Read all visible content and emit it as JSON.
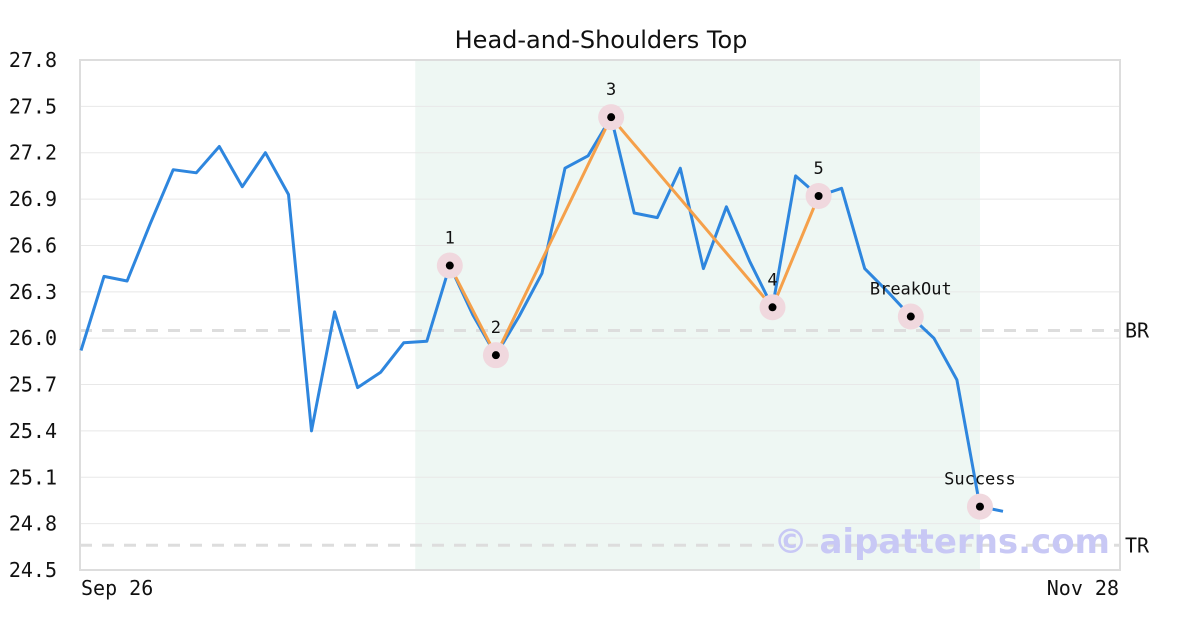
{
  "chart_data": {
    "type": "line",
    "title": "Head-and-Shoulders Top",
    "xlabel": "",
    "ylabel": "",
    "ylim": [
      24.5,
      27.8
    ],
    "yticks": [
      "24.5",
      "24.8",
      "25.1",
      "25.4",
      "25.7",
      "26.0",
      "26.3",
      "26.6",
      "26.9",
      "27.2",
      "27.5",
      "27.8"
    ],
    "x_tick_labels": {
      "first": "Sep 26",
      "last": "Nov 28"
    },
    "x_count": 46,
    "grid": true,
    "pattern_region": {
      "start_index": 14,
      "end_index": 39
    },
    "series": [
      {
        "values": [
          25.92,
          26.4,
          26.37,
          26.74,
          27.09,
          27.07,
          27.24,
          26.98,
          27.2,
          26.93,
          25.4,
          26.17,
          25.68,
          25.78,
          25.97,
          25.98,
          26.47,
          26.15,
          25.89,
          26.14,
          26.42,
          27.1,
          27.18,
          27.43,
          26.81,
          26.78,
          27.1,
          26.45,
          26.85,
          26.5,
          26.2,
          27.05,
          26.92,
          26.97,
          26.45,
          26.3,
          26.14,
          26.0,
          25.73,
          24.91,
          24.88
        ]
      }
    ],
    "pattern_points": [
      {
        "label": "1",
        "index": 16,
        "value": 26.47
      },
      {
        "label": "2",
        "index": 18,
        "value": 25.89
      },
      {
        "label": "3",
        "index": 23,
        "value": 27.43
      },
      {
        "label": "4",
        "index": 30,
        "value": 26.2
      },
      {
        "label": "5",
        "index": 32,
        "value": 26.92
      },
      {
        "label": "BreakOut",
        "index": 36,
        "value": 26.14
      },
      {
        "label": "Success",
        "index": 39,
        "value": 24.91
      }
    ],
    "levels": [
      {
        "label": "BR",
        "value": 26.05
      },
      {
        "label": "TR",
        "value": 24.66
      }
    ],
    "colors": {
      "price_line": "#2e86de",
      "pattern_line": "#f5a04a",
      "region_fill": "#eef7f3",
      "marker_halo": "#f0d8de",
      "marker_dot": "#000000",
      "level_line": "#dddddd"
    }
  },
  "watermark": "© aipatterns.com"
}
